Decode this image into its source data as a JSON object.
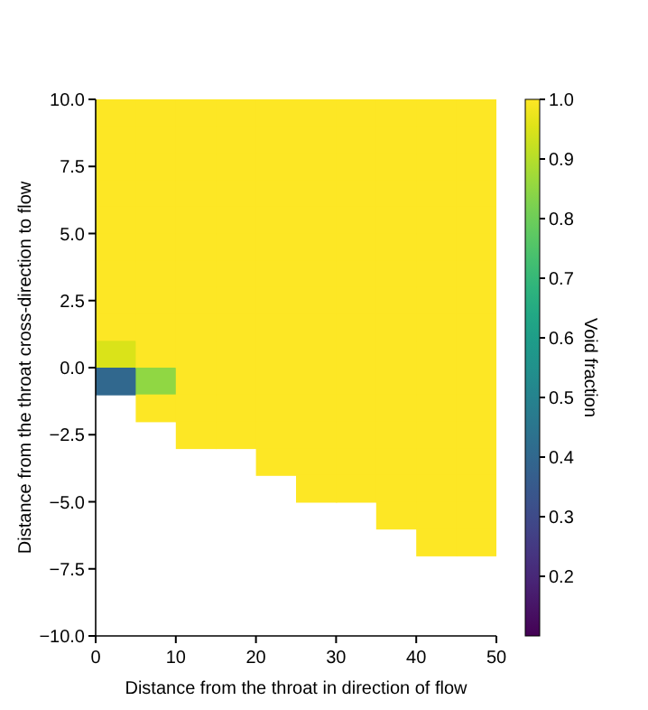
{
  "chart_data": {
    "type": "scatter",
    "xlabel": "Distance from the throat in direction of flow",
    "ylabel": "Distance from the throat cross-direction to flow",
    "clabel": "Void fraction",
    "marker": "square",
    "xlim": [
      0,
      50
    ],
    "xticks": [
      0,
      10,
      20,
      30,
      40,
      50
    ],
    "ylim": [
      -10,
      10
    ],
    "yticks": [
      {
        "value": -10,
        "label": "−10.0"
      },
      {
        "value": -7.5,
        "label": "−7.5"
      },
      {
        "value": -5,
        "label": "−5.0"
      },
      {
        "value": -2.5,
        "label": "−2.5"
      },
      {
        "value": 0,
        "label": "0.0"
      },
      {
        "value": 2.5,
        "label": "2.5"
      },
      {
        "value": 5,
        "label": "5.0"
      },
      {
        "value": 7.5,
        "label": "7.5"
      },
      {
        "value": 10,
        "label": "10.0"
      }
    ],
    "clim": [
      0.1,
      1.0
    ],
    "cticks": [
      {
        "value": 0.2,
        "label": "0.2"
      },
      {
        "value": 0.3,
        "label": "0.3"
      },
      {
        "value": 0.4,
        "label": "0.4"
      },
      {
        "value": 0.5,
        "label": "0.5"
      },
      {
        "value": 0.6,
        "label": "0.6"
      },
      {
        "value": 0.7,
        "label": "0.7"
      },
      {
        "value": 0.8,
        "label": "0.8"
      },
      {
        "value": 0.9,
        "label": "0.9"
      },
      {
        "value": 1.0,
        "label": "1.0"
      }
    ],
    "series": [
      {
        "x": [
          2.5,
          2.5,
          2.5,
          2.5,
          2.5,
          2.5,
          2.5,
          2.5,
          2.5,
          2.5,
          2.5,
          7.5,
          7.5,
          7.5,
          7.5,
          7.5,
          7.5,
          7.5,
          7.5,
          7.5,
          7.5,
          7.5,
          7.5,
          12.5,
          12.5,
          12.5,
          12.5,
          12.5,
          12.5,
          12.5,
          12.5,
          12.5,
          12.5,
          12.5,
          12.5,
          12.5,
          17.5,
          17.5,
          17.5,
          17.5,
          17.5,
          17.5,
          17.5,
          17.5,
          17.5,
          17.5,
          17.5,
          17.5,
          17.5,
          22.5,
          22.5,
          22.5,
          22.5,
          22.5,
          22.5,
          22.5,
          22.5,
          22.5,
          22.5,
          22.5,
          22.5,
          22.5,
          22.5,
          27.5,
          27.5,
          27.5,
          27.5,
          27.5,
          27.5,
          27.5,
          27.5,
          27.5,
          27.5,
          27.5,
          27.5,
          27.5,
          27.5,
          27.5,
          32.5,
          32.5,
          32.5,
          32.5,
          32.5,
          32.5,
          32.5,
          32.5,
          32.5,
          32.5,
          32.5,
          32.5,
          32.5,
          32.5,
          32.5,
          37.5,
          37.5,
          37.5,
          37.5,
          37.5,
          37.5,
          37.5,
          37.5,
          37.5,
          37.5,
          37.5,
          37.5,
          37.5,
          37.5,
          37.5,
          37.5,
          42.5,
          42.5,
          42.5,
          42.5,
          42.5,
          42.5,
          42.5,
          42.5,
          42.5,
          42.5,
          42.5,
          42.5,
          42.5,
          42.5,
          42.5,
          42.5,
          42.5,
          47.5,
          47.5,
          47.5,
          47.5,
          47.5,
          47.5,
          47.5,
          47.5,
          47.5,
          47.5,
          47.5,
          47.5,
          47.5,
          47.5,
          47.5,
          47.5,
          47.5
        ],
        "values": [
          9.5,
          8.5,
          7.5,
          6.5,
          5.5,
          4.5,
          3.5,
          2.5,
          1.5,
          0.5,
          -0.5,
          9.5,
          8.5,
          7.5,
          6.5,
          5.5,
          4.5,
          3.5,
          2.5,
          1.5,
          0.5,
          -0.5,
          -1.5,
          9.5,
          8.5,
          7.5,
          6.5,
          5.5,
          4.5,
          3.5,
          2.5,
          1.5,
          0.5,
          -0.5,
          -1.5,
          -2.5,
          9.5,
          8.5,
          7.5,
          6.5,
          5.5,
          4.5,
          3.5,
          2.5,
          1.5,
          0.5,
          -0.5,
          -1.5,
          -2.5,
          9.5,
          8.5,
          7.5,
          6.5,
          5.5,
          4.5,
          3.5,
          2.5,
          1.5,
          0.5,
          -0.5,
          -1.5,
          -2.5,
          -3.5,
          9.5,
          8.5,
          7.5,
          6.5,
          5.5,
          4.5,
          3.5,
          2.5,
          1.5,
          0.5,
          -0.5,
          -1.5,
          -2.5,
          -3.5,
          -4.5,
          9.5,
          8.5,
          7.5,
          6.5,
          5.5,
          4.5,
          3.5,
          2.5,
          1.5,
          0.5,
          -0.5,
          -1.5,
          -2.5,
          -3.5,
          -4.5,
          9.5,
          8.5,
          7.5,
          6.5,
          5.5,
          4.5,
          3.5,
          2.5,
          1.5,
          0.5,
          -0.5,
          -1.5,
          -2.5,
          -3.5,
          -4.5,
          -5.5,
          9.5,
          8.5,
          7.5,
          6.5,
          5.5,
          4.5,
          3.5,
          2.5,
          1.5,
          0.5,
          -0.5,
          -1.5,
          -2.5,
          -3.5,
          -4.5,
          -5.5,
          -6.5,
          9.5,
          8.5,
          7.5,
          6.5,
          5.5,
          4.5,
          3.5,
          2.5,
          1.5,
          0.5,
          -0.5,
          -1.5,
          -2.5,
          -3.5,
          -4.5,
          -5.5,
          -6.5
        ],
        "cvalues": [
          1,
          1,
          1,
          1,
          1,
          1,
          1,
          1,
          1,
          0.95,
          0.4,
          1,
          1,
          1,
          1,
          1,
          1,
          1,
          1,
          1,
          1,
          0.85,
          1,
          1,
          1,
          1,
          1,
          1,
          1,
          1,
          1,
          1,
          1,
          1,
          1,
          1,
          1,
          1,
          1,
          1,
          1,
          1,
          1,
          1,
          1,
          1,
          1,
          1,
          1,
          1,
          1,
          1,
          1,
          1,
          1,
          1,
          1,
          1,
          1,
          1,
          1,
          1,
          1,
          1,
          1,
          1,
          1,
          1,
          1,
          1,
          1,
          1,
          1,
          1,
          1,
          1,
          1,
          1,
          1,
          1,
          1,
          1,
          1,
          1,
          1,
          1,
          1,
          1,
          1,
          1,
          1,
          1,
          1,
          1,
          1,
          1,
          1,
          1,
          1,
          1,
          1,
          1,
          1,
          1,
          1,
          1,
          1,
          1,
          1,
          1,
          1,
          1,
          1,
          1,
          1,
          1,
          1,
          1,
          1,
          1,
          1,
          1,
          1,
          1,
          1,
          1,
          1,
          1,
          1,
          1,
          1,
          1,
          1,
          1,
          1,
          1,
          1,
          1,
          1,
          1,
          1,
          1,
          1
        ]
      }
    ]
  }
}
